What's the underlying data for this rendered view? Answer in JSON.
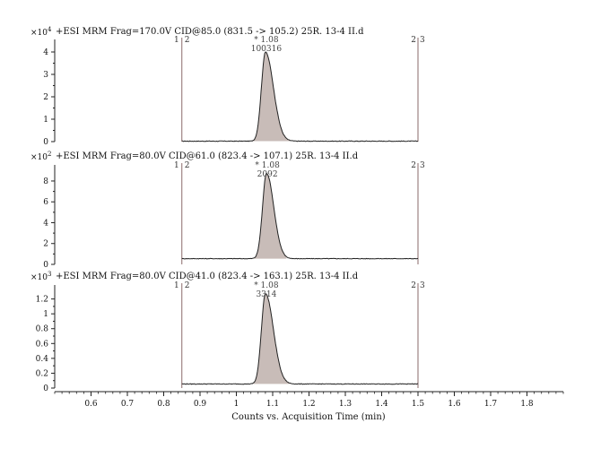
{
  "chart_data": {
    "type": "line",
    "xlabel": "Counts vs. Acquisition Time (min)",
    "xlim": [
      0.5,
      1.9
    ],
    "x_ticks": [
      "0.6",
      "0.7",
      "0.8",
      "0.9",
      "1",
      "1.1",
      "1.2",
      "1.3",
      "1.4",
      "1.5",
      "1.6",
      "1.7",
      "1.8"
    ],
    "integration_start": 0.85,
    "integration_end": 1.5,
    "panels": [
      {
        "title": "+ESI MRM Frag=170.0V CID@85.0 (831.5 -> 105.2) 25R. 13-4 II.d",
        "multiplier_base": "×10",
        "multiplier_exp": "4",
        "ylim": [
          0,
          4.4
        ],
        "y_ticks": [
          "0",
          "1",
          "2",
          "3",
          "4"
        ],
        "peak_rt_label": "* 1.08",
        "peak_area_label": "100316",
        "marker_left": "1",
        "marker_mid": "2",
        "marker_right_a": "2",
        "marker_right_b": "3",
        "peak_rt": 1.08,
        "peak_height": 3.98,
        "baseline": 0.02,
        "sigma_left": 0.011,
        "sigma_right": 0.022,
        "peak_start": 1.045,
        "peak_end": 1.15
      },
      {
        "title": "+ESI MRM Frag=80.0V CID@61.0 (823.4 -> 107.1) 25R. 13-4 II.d",
        "multiplier_base": "×10",
        "multiplier_exp": "2",
        "ylim": [
          0,
          9.2
        ],
        "y_ticks": [
          "0",
          "2",
          "4",
          "6",
          "8"
        ],
        "peak_rt_label": "* 1.08",
        "peak_area_label": "2092",
        "marker_left": "1",
        "marker_mid": "2",
        "marker_right_a": "2",
        "marker_right_b": "3",
        "peak_rt": 1.083,
        "peak_height": 8.2,
        "baseline": 0.55,
        "sigma_left": 0.011,
        "sigma_right": 0.02,
        "peak_start": 1.048,
        "peak_end": 1.14
      },
      {
        "title": "+ESI MRM Frag=80.0V CID@41.0 (823.4 -> 163.1) 25R. 13-4 II.d",
        "multiplier_base": "×10",
        "multiplier_exp": "3",
        "ylim": [
          0,
          1.34
        ],
        "y_ticks": [
          "0",
          "0.2",
          "0.4",
          "0.6",
          "0.8",
          "1",
          "1.2"
        ],
        "peak_rt_label": "* 1.08",
        "peak_area_label": "3314",
        "marker_left": "1",
        "marker_mid": "2",
        "marker_right_a": "2",
        "marker_right_b": "3",
        "peak_rt": 1.08,
        "peak_height": 1.22,
        "baseline": 0.055,
        "sigma_left": 0.011,
        "sigma_right": 0.022,
        "peak_start": 1.045,
        "peak_end": 1.155
      }
    ]
  }
}
